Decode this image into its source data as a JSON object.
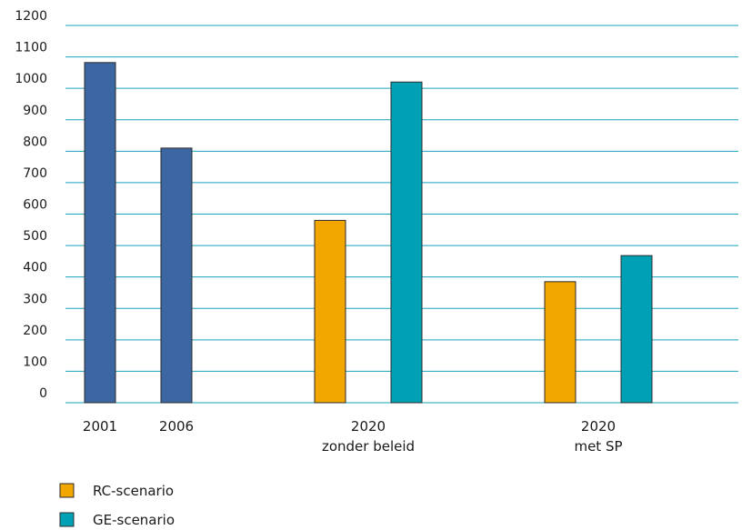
{
  "chart_data": {
    "type": "bar",
    "title": "",
    "xlabel": "",
    "ylabel": "",
    "ylim": [
      0,
      1200
    ],
    "yticks": [
      0,
      100,
      200,
      300,
      400,
      500,
      600,
      700,
      800,
      900,
      1000,
      1100,
      1200
    ],
    "grid": true,
    "legend_position": "bottom-left",
    "groups": [
      {
        "label_line1": "2001",
        "label_line2": ""
      },
      {
        "label_line1": "2006",
        "label_line2": ""
      },
      {
        "label_line1": "2020",
        "label_line2": "zonder beleid"
      },
      {
        "label_line1": "2020",
        "label_line2": "met SP"
      }
    ],
    "bars": [
      {
        "group": 0,
        "series": "historic",
        "value": 1082
      },
      {
        "group": 1,
        "series": "historic",
        "value": 810
      },
      {
        "group": 2,
        "series": "rc",
        "value": 580
      },
      {
        "group": 2,
        "series": "ge",
        "value": 1020
      },
      {
        "group": 3,
        "series": "rc",
        "value": 385
      },
      {
        "group": 3,
        "series": "ge",
        "value": 468
      }
    ],
    "series": [
      {
        "key": "historic",
        "name": "",
        "color": "#3d67a3"
      },
      {
        "key": "rc",
        "name": "RC-scenario",
        "color": "#f2a600"
      },
      {
        "key": "ge",
        "name": "GE-scenario",
        "color": "#00a0b5"
      }
    ],
    "gridline_color": "#1aa3bd",
    "bar_stroke": "#2b2b2b"
  }
}
